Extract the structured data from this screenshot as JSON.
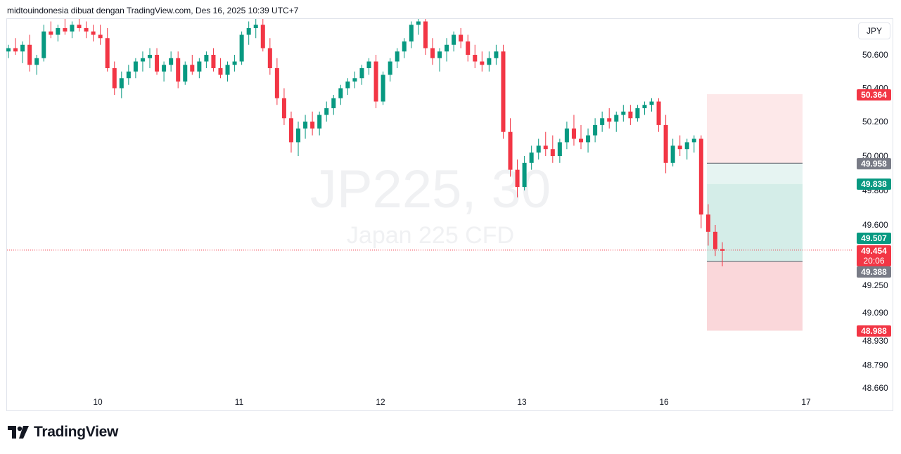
{
  "header": {
    "title": "midtouindonesia dibuat dengan TradingView.com, Des 16, 2025 10:39 UTC+7"
  },
  "currency": "JPY",
  "watermark": {
    "symbol": "JP225, 30",
    "description": "Japan 225 CFD"
  },
  "brand": {
    "name": "TradingView"
  },
  "colors": {
    "up": "#089981",
    "down": "#f23645",
    "grid": "#e0e3eb",
    "axis_text": "#131722"
  },
  "chart_data": {
    "type": "candlestick",
    "symbol": "JP225",
    "interval": "30",
    "price_axis_ticks": [
      "50.600",
      "50.400",
      "50.200",
      "50.000",
      "49.800",
      "49.600",
      "49.250",
      "49.090",
      "48.930",
      "48.790",
      "48.660"
    ],
    "time_axis_ticks": [
      "10",
      "11",
      "12",
      "13",
      "16",
      "17"
    ],
    "price_labels": [
      {
        "value": "50.364",
        "role": "stop-target-top",
        "color": "#f23645"
      },
      {
        "value": "49.958",
        "role": "level",
        "color": "#787b86"
      },
      {
        "value": "49.838",
        "role": "target",
        "color": "#089981"
      },
      {
        "value": "49.507",
        "role": "level",
        "color": "#089981"
      },
      {
        "value": "49.454",
        "role": "last-price",
        "color": "#f23645",
        "countdown": "20:06"
      },
      {
        "value": "49.388",
        "role": "entry",
        "color": "#787b86"
      },
      {
        "value": "48.988",
        "role": "stop-loss",
        "color": "#f23645"
      }
    ],
    "position_tool": {
      "entry": 49.388,
      "target_zone": [
        49.388,
        50.364
      ],
      "stop_zone": [
        48.988,
        49.388
      ]
    },
    "last_price": 49.454,
    "series_description": "30-minute candles Dec 9–16 2025; approximate OHLC sequence",
    "candles": [
      [
        50.62,
        50.66,
        50.58,
        50.64
      ],
      [
        50.64,
        50.7,
        50.6,
        50.62
      ],
      [
        50.62,
        50.68,
        50.55,
        50.66
      ],
      [
        50.66,
        50.72,
        50.5,
        50.54
      ],
      [
        50.54,
        50.6,
        50.48,
        50.58
      ],
      [
        50.58,
        50.78,
        50.56,
        50.74
      ],
      [
        50.74,
        50.8,
        50.7,
        50.72
      ],
      [
        50.72,
        50.78,
        50.68,
        50.76
      ],
      [
        50.76,
        50.82,
        50.72,
        50.74
      ],
      [
        50.74,
        50.8,
        50.7,
        50.78
      ],
      [
        50.78,
        50.82,
        50.74,
        50.76
      ],
      [
        50.76,
        50.8,
        50.7,
        50.74
      ],
      [
        50.74,
        50.78,
        50.68,
        50.72
      ],
      [
        50.72,
        50.78,
        50.66,
        50.7
      ],
      [
        50.7,
        50.76,
        50.5,
        50.52
      ],
      [
        50.52,
        50.56,
        50.36,
        50.4
      ],
      [
        50.4,
        50.5,
        50.34,
        50.46
      ],
      [
        50.46,
        50.54,
        50.42,
        50.5
      ],
      [
        50.5,
        50.58,
        50.46,
        50.56
      ],
      [
        50.56,
        50.62,
        50.5,
        50.58
      ],
      [
        50.58,
        50.64,
        50.52,
        50.6
      ],
      [
        50.6,
        50.64,
        50.48,
        50.5
      ],
      [
        50.5,
        50.56,
        50.44,
        50.54
      ],
      [
        50.54,
        50.62,
        50.5,
        50.58
      ],
      [
        50.58,
        50.62,
        50.4,
        50.44
      ],
      [
        50.44,
        50.56,
        50.42,
        50.54
      ],
      [
        50.54,
        50.6,
        50.48,
        50.5
      ],
      [
        50.5,
        50.58,
        50.46,
        50.56
      ],
      [
        50.56,
        50.62,
        50.52,
        50.6
      ],
      [
        50.6,
        50.64,
        50.5,
        50.52
      ],
      [
        50.52,
        50.58,
        50.46,
        50.48
      ],
      [
        50.48,
        50.56,
        50.44,
        50.54
      ],
      [
        50.54,
        50.6,
        50.5,
        50.56
      ],
      [
        50.56,
        50.74,
        50.54,
        50.72
      ],
      [
        50.72,
        50.8,
        50.66,
        50.76
      ],
      [
        50.76,
        50.82,
        50.7,
        50.78
      ],
      [
        50.78,
        50.82,
        50.62,
        50.64
      ],
      [
        50.64,
        50.7,
        50.48,
        50.52
      ],
      [
        50.52,
        50.58,
        50.3,
        50.34
      ],
      [
        50.34,
        50.4,
        50.18,
        50.22
      ],
      [
        50.22,
        50.26,
        50.02,
        50.08
      ],
      [
        50.08,
        50.2,
        50.0,
        50.16
      ],
      [
        50.16,
        50.24,
        50.1,
        50.2
      ],
      [
        50.2,
        50.26,
        50.12,
        50.16
      ],
      [
        50.16,
        50.26,
        50.12,
        50.24
      ],
      [
        50.24,
        50.32,
        50.2,
        50.28
      ],
      [
        50.28,
        50.36,
        50.24,
        50.34
      ],
      [
        50.34,
        50.42,
        50.3,
        50.4
      ],
      [
        50.4,
        50.46,
        50.36,
        50.44
      ],
      [
        50.44,
        50.5,
        50.4,
        50.46
      ],
      [
        50.46,
        50.54,
        50.42,
        50.52
      ],
      [
        50.52,
        50.58,
        50.48,
        50.56
      ],
      [
        50.56,
        50.6,
        50.28,
        50.32
      ],
      [
        50.32,
        50.5,
        50.3,
        50.48
      ],
      [
        50.48,
        50.58,
        50.44,
        50.56
      ],
      [
        50.56,
        50.64,
        50.52,
        50.62
      ],
      [
        50.62,
        50.7,
        50.58,
        50.68
      ],
      [
        50.68,
        50.8,
        50.64,
        50.78
      ],
      [
        50.78,
        50.86,
        50.72,
        50.8
      ],
      [
        50.8,
        50.84,
        50.6,
        50.64
      ],
      [
        50.64,
        50.7,
        50.54,
        50.58
      ],
      [
        50.58,
        50.64,
        50.5,
        50.62
      ],
      [
        50.62,
        50.7,
        50.56,
        50.66
      ],
      [
        50.66,
        50.74,
        50.62,
        50.72
      ],
      [
        50.72,
        50.76,
        50.64,
        50.68
      ],
      [
        50.68,
        50.72,
        50.56,
        50.6
      ],
      [
        50.6,
        50.66,
        50.52,
        50.56
      ],
      [
        50.56,
        50.62,
        50.5,
        50.54
      ],
      [
        50.54,
        50.62,
        50.5,
        50.58
      ],
      [
        50.58,
        50.66,
        50.54,
        50.62
      ],
      [
        50.62,
        50.66,
        50.1,
        50.14
      ],
      [
        50.14,
        50.22,
        49.88,
        49.92
      ],
      [
        49.92,
        49.98,
        49.76,
        49.82
      ],
      [
        49.82,
        50.0,
        49.8,
        49.96
      ],
      [
        49.96,
        50.06,
        49.92,
        50.02
      ],
      [
        50.02,
        50.1,
        49.98,
        50.06
      ],
      [
        50.06,
        50.14,
        50.0,
        50.04
      ],
      [
        50.04,
        50.12,
        49.96,
        50.0
      ],
      [
        50.0,
        50.1,
        49.96,
        50.08
      ],
      [
        50.08,
        50.2,
        50.04,
        50.16
      ],
      [
        50.16,
        50.24,
        50.06,
        50.1
      ],
      [
        50.1,
        50.18,
        50.04,
        50.08
      ],
      [
        50.08,
        50.16,
        50.02,
        50.12
      ],
      [
        50.12,
        50.22,
        50.08,
        50.18
      ],
      [
        50.18,
        50.26,
        50.14,
        50.22
      ],
      [
        50.22,
        50.28,
        50.16,
        50.2
      ],
      [
        50.2,
        50.26,
        50.14,
        50.24
      ],
      [
        50.24,
        50.3,
        50.2,
        50.26
      ],
      [
        50.26,
        50.3,
        50.18,
        50.22
      ],
      [
        50.22,
        50.3,
        50.2,
        50.28
      ],
      [
        50.28,
        50.32,
        50.24,
        50.3
      ],
      [
        50.3,
        50.34,
        50.26,
        50.32
      ],
      [
        50.32,
        50.34,
        50.14,
        50.18
      ],
      [
        50.18,
        50.24,
        49.9,
        49.96
      ],
      [
        49.96,
        50.1,
        49.94,
        50.06
      ],
      [
        50.06,
        50.12,
        50.0,
        50.04
      ],
      [
        50.04,
        50.1,
        49.98,
        50.08
      ],
      [
        50.08,
        50.12,
        50.02,
        50.1
      ],
      [
        50.1,
        50.12,
        49.58,
        49.66
      ],
      [
        49.66,
        49.72,
        49.48,
        49.56
      ],
      [
        49.56,
        49.6,
        49.42,
        49.46
      ],
      [
        49.46,
        49.5,
        49.36,
        49.45
      ]
    ]
  }
}
